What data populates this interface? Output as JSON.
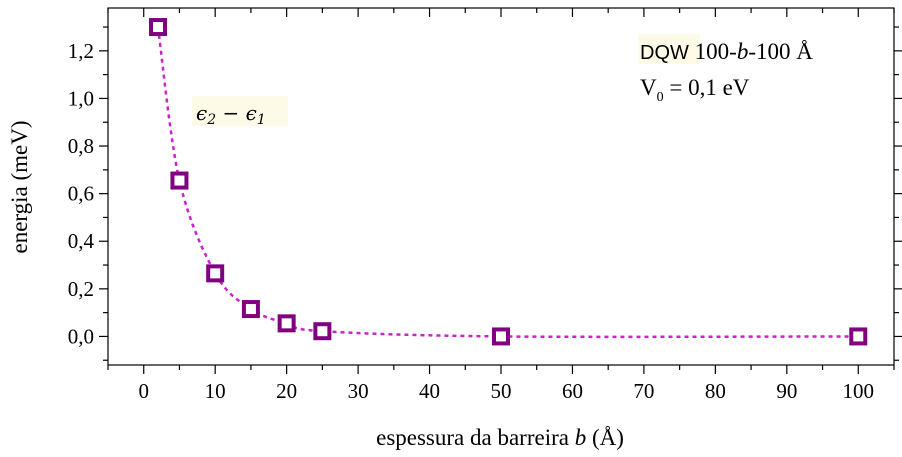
{
  "chart_data": {
    "type": "scatter",
    "x": [
      2,
      5,
      10,
      15,
      20,
      25,
      50,
      100
    ],
    "y": [
      1.3,
      0.655,
      0.265,
      0.115,
      0.055,
      0.022,
      0.0,
      0.0
    ],
    "xlabel_prefix": "espessura da barreira ",
    "xlabel_var": "b",
    "xlabel_unit": " (Å)",
    "ylabel": "energia (meV)",
    "xlim": [
      -5,
      105
    ],
    "ylim": [
      -0.12,
      1.38
    ],
    "xticks": [
      0,
      10,
      20,
      30,
      40,
      50,
      60,
      70,
      80,
      90,
      100
    ],
    "xtick_labels": [
      "0",
      "10",
      "20",
      "30",
      "40",
      "50",
      "60",
      "70",
      "80",
      "90",
      "100"
    ],
    "yticks": [
      0.0,
      0.2,
      0.4,
      0.6,
      0.8,
      1.0,
      1.2
    ],
    "ytick_labels": [
      "0,0",
      "0,2",
      "0,4",
      "0,6",
      "0,8",
      "1,0",
      "1,2"
    ],
    "grid": false,
    "marker": "open-square",
    "line_style": "dotted",
    "series_color": "#cc22cc",
    "marker_color": "#800080",
    "annotations": {
      "curve_label_a": "ϵ",
      "curve_label_a_sub": "2",
      "curve_label_minus": " − ",
      "curve_label_b": "ϵ",
      "curve_label_b_sub": "1",
      "dqw_prefix": "DQW",
      "dqw_a": " 100-",
      "dqw_var": "b",
      "dqw_b": "-100 Å",
      "v0_base": "V",
      "v0_sub": "0",
      "v0_value": " = 0,1 eV"
    }
  }
}
